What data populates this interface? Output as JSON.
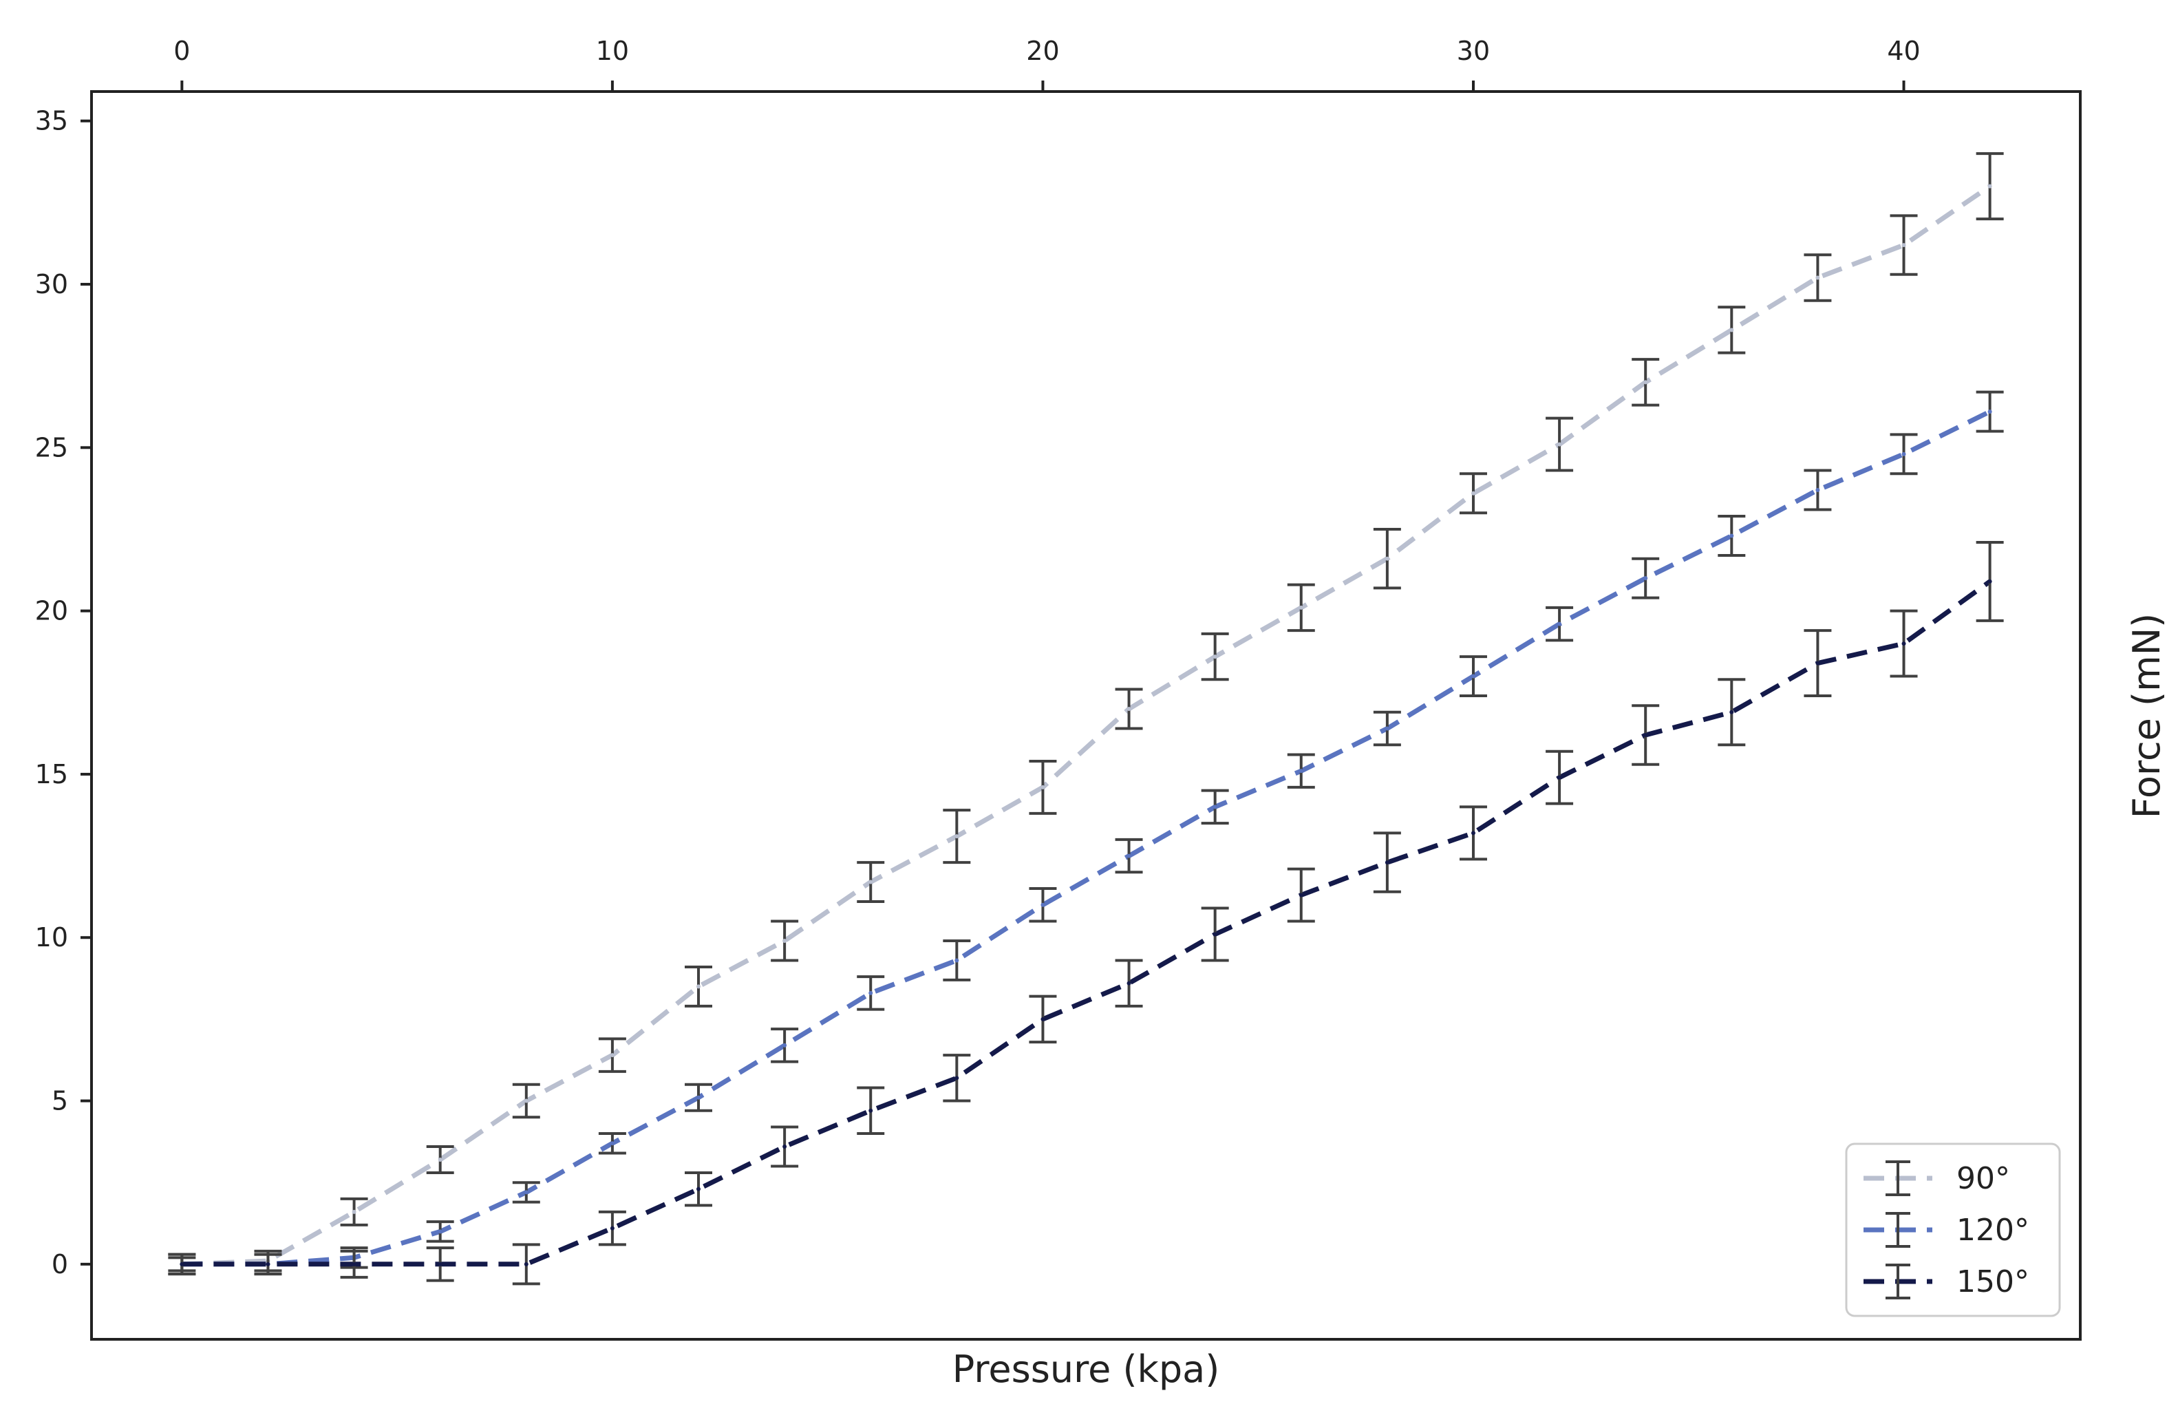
{
  "chart_data": {
    "type": "line",
    "title": "",
    "xlabel": "Pressure (kpa)",
    "ylabel": "Force (mN)",
    "xlim": [
      -2.1,
      44.1
    ],
    "ylim": [
      -2.3,
      35.9
    ],
    "x_ticks": [
      0,
      10,
      20,
      30,
      40
    ],
    "y_ticks": [
      0,
      5,
      10,
      15,
      20,
      25,
      30,
      35
    ],
    "x_axis_position": "top",
    "y_axis_labels_position": "left",
    "ylabel_position": "right",
    "grid": false,
    "legend_position": "bottom-right",
    "error_bar_color": "#404040",
    "x": [
      0,
      2,
      4,
      6,
      8,
      10,
      12,
      14,
      16,
      18,
      20,
      22,
      24,
      26,
      28,
      30,
      32,
      34,
      36,
      38,
      40,
      42
    ],
    "series": [
      {
        "name": "90°",
        "color": "#b9bfcf",
        "values": [
          0,
          0.1,
          1.6,
          3.2,
          5.0,
          6.4,
          8.5,
          9.9,
          11.7,
          13.1,
          14.6,
          17.0,
          18.6,
          20.1,
          21.6,
          23.6,
          25.1,
          27.0,
          28.6,
          30.2,
          31.2,
          33.0
        ],
        "errors": [
          0.3,
          0.3,
          0.4,
          0.4,
          0.5,
          0.5,
          0.6,
          0.6,
          0.6,
          0.8,
          0.8,
          0.6,
          0.7,
          0.7,
          0.9,
          0.6,
          0.8,
          0.7,
          0.7,
          0.7,
          0.9,
          1.0
        ]
      },
      {
        "name": "120°",
        "color": "#5a74c0",
        "values": [
          0,
          0,
          0.2,
          1.0,
          2.2,
          3.7,
          5.1,
          6.7,
          8.3,
          9.3,
          11.0,
          12.5,
          14.0,
          15.1,
          16.4,
          18.0,
          19.6,
          21.0,
          22.3,
          23.7,
          24.8,
          26.1
        ],
        "errors": [
          0.2,
          0.3,
          0.3,
          0.3,
          0.3,
          0.3,
          0.4,
          0.5,
          0.5,
          0.6,
          0.5,
          0.5,
          0.5,
          0.5,
          0.5,
          0.6,
          0.5,
          0.6,
          0.6,
          0.6,
          0.6,
          0.6
        ]
      },
      {
        "name": "150°",
        "color": "#141a4a",
        "values": [
          0,
          0,
          0,
          0,
          0,
          1.1,
          2.3,
          3.6,
          4.7,
          5.7,
          7.5,
          8.6,
          10.1,
          11.3,
          12.3,
          13.2,
          14.9,
          16.2,
          16.9,
          18.4,
          19.0,
          20.9
        ],
        "errors": [
          0.3,
          0.3,
          0.4,
          0.5,
          0.6,
          0.5,
          0.5,
          0.6,
          0.7,
          0.7,
          0.7,
          0.7,
          0.8,
          0.8,
          0.9,
          0.8,
          0.8,
          0.9,
          1.0,
          1.0,
          1.0,
          1.2
        ]
      }
    ]
  }
}
